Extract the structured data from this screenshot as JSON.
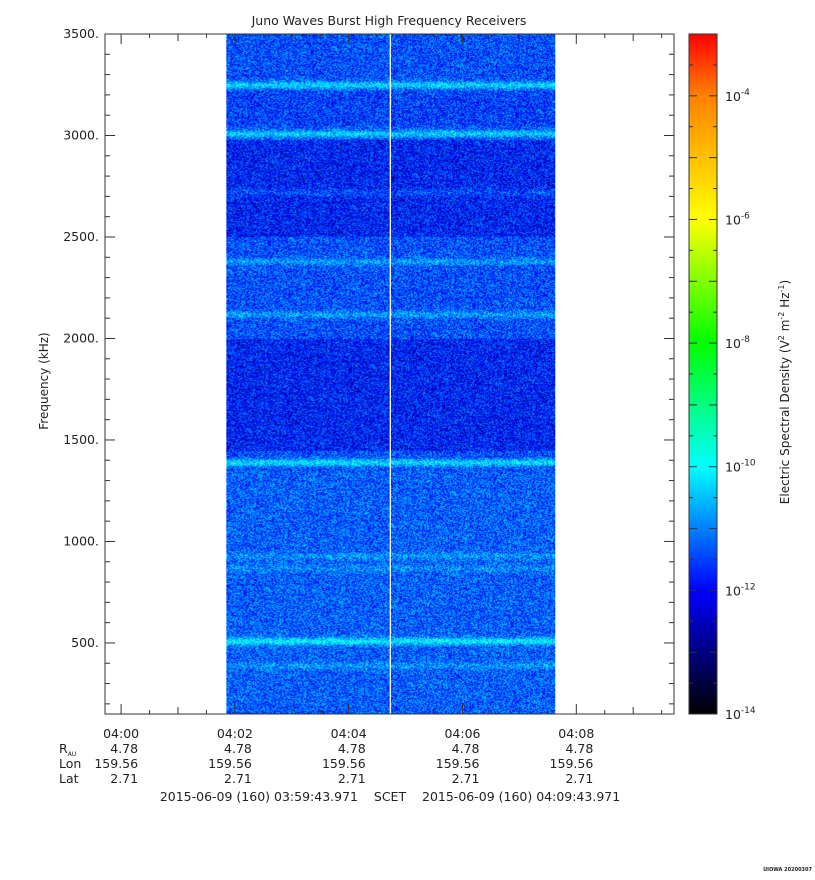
{
  "chart_data": {
    "type": "heatmap",
    "title": "Juno Waves Burst High Frequency Receivers",
    "ylabel": "Frequency (kHz)",
    "ylim": [
      150,
      3500
    ],
    "y_ticks": [
      {
        "value": 500,
        "label": "500."
      },
      {
        "value": 1000,
        "label": "1000."
      },
      {
        "value": 1500,
        "label": "1500."
      },
      {
        "value": 2000,
        "label": "2000."
      },
      {
        "value": 2500,
        "label": "2500."
      },
      {
        "value": 3000,
        "label": "3000."
      },
      {
        "value": 3500,
        "label": "3500."
      }
    ],
    "x_range_minutes": [
      -0.283,
      9.717
    ],
    "x_ticks": [
      {
        "value": 0,
        "label": "04:00"
      },
      {
        "value": 2,
        "label": "04:02"
      },
      {
        "value": 4,
        "label": "04:04"
      },
      {
        "value": 6,
        "label": "04:06"
      },
      {
        "value": 8,
        "label": "04:08"
      }
    ],
    "data_span_minutes": [
      1.85,
      7.63
    ],
    "data_gap_minute": 4.72,
    "emission_bands_khz": [
      {
        "freq": 3250,
        "strength": 0.8
      },
      {
        "freq": 3010,
        "strength": 0.75
      },
      {
        "freq": 2720,
        "strength": 0.25
      },
      {
        "freq": 2380,
        "strength": 0.45
      },
      {
        "freq": 2120,
        "strength": 0.45
      },
      {
        "freq": 1390,
        "strength": 0.85
      },
      {
        "freq": 930,
        "strength": 0.3
      },
      {
        "freq": 870,
        "strength": 0.25
      },
      {
        "freq": 510,
        "strength": 0.9
      },
      {
        "freq": 390,
        "strength": 0.3
      }
    ],
    "colorbar": {
      "label": "Electric Spectral Density (V² m⁻² Hz⁻¹)",
      "label_parts": [
        "Electric Spectral Density (V",
        "2",
        " m",
        "-2",
        " Hz",
        "-1",
        ")"
      ],
      "log_range": [
        -14,
        -3
      ],
      "ticks": [
        {
          "exp": -4,
          "base": "10",
          "power": "-4"
        },
        {
          "exp": -6,
          "base": "10",
          "power": "-6"
        },
        {
          "exp": -8,
          "base": "10",
          "power": "-8"
        },
        {
          "exp": -10,
          "base": "10",
          "power": "-10"
        },
        {
          "exp": -12,
          "base": "10",
          "power": "-12"
        },
        {
          "exp": -14,
          "base": "10",
          "power": "-14"
        }
      ],
      "colormap": [
        "#000000",
        "#000080",
        "#0000ff",
        "#0080ff",
        "#00ffff",
        "#00ff80",
        "#00ff00",
        "#80ff00",
        "#ffff00",
        "#ffc000",
        "#ff8000",
        "#ff0000"
      ]
    },
    "ephemeris": {
      "labels": [
        {
          "name": "R",
          "sub": "AU"
        },
        {
          "name": "Lon",
          "sub": ""
        },
        {
          "name": "Lat",
          "sub": ""
        }
      ],
      "rows": [
        [
          "4.78",
          "4.78",
          "4.78",
          "4.78",
          "4.78"
        ],
        [
          "159.56",
          "159.56",
          "159.56",
          "159.56",
          "159.56"
        ],
        [
          "2.71",
          "2.71",
          "2.71",
          "2.71",
          "2.71"
        ]
      ]
    },
    "time_range": {
      "start": "2015-06-09 (160) 03:59:43.971",
      "scet": "SCET",
      "end": "2015-06-09 (160) 04:09:43.971"
    },
    "stamp": "UIOWA 20200307"
  }
}
